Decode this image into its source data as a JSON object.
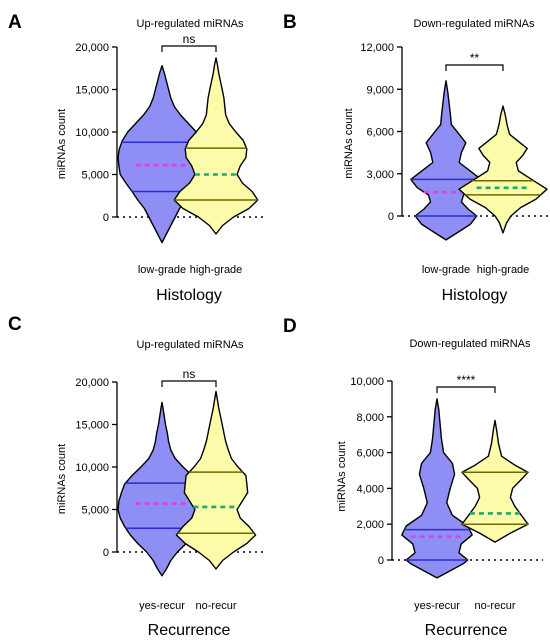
{
  "colors": {
    "group1_fill": "#8f8ef5",
    "group1_line": "#2a2ad8",
    "group2_fill": "#fbfba9",
    "group2_line": "#6b6b00",
    "mean1": "#e040e0",
    "mean2": "#1fa870",
    "outline": "#000000"
  },
  "chart_data": [
    {
      "panel": "A",
      "type": "violin",
      "title": "Up-regulated miRNAs",
      "ylabel": "miRNAs count",
      "xlabel": "Histology",
      "ylim": [
        0,
        20000
      ],
      "yticks": [
        0,
        5000,
        10000,
        15000,
        20000
      ],
      "ytick_labels": [
        "0",
        "5,000",
        "10,000",
        "15,000",
        "20,000"
      ],
      "categories": [
        "low-grade",
        "high-grade"
      ],
      "significance": "ns",
      "violins": [
        {
          "name": "low-grade",
          "ymin": -3000,
          "ymax": 17800,
          "q1": 3000,
          "median": 6000,
          "q3": 8800,
          "mean": 6100,
          "density": [
            [
              -3000,
              0
            ],
            [
              -2000,
              0.1
            ],
            [
              -1000,
              0.2
            ],
            [
              0,
              0.3
            ],
            [
              1000,
              0.4
            ],
            [
              2000,
              0.55
            ],
            [
              3000,
              0.68
            ],
            [
              4000,
              0.82
            ],
            [
              5000,
              0.95
            ],
            [
              6000,
              0.98
            ],
            [
              7000,
              1.0
            ],
            [
              8000,
              0.97
            ],
            [
              9000,
              0.9
            ],
            [
              10000,
              0.78
            ],
            [
              11000,
              0.6
            ],
            [
              12000,
              0.42
            ],
            [
              13000,
              0.28
            ],
            [
              14000,
              0.2
            ],
            [
              15000,
              0.15
            ],
            [
              16000,
              0.1
            ],
            [
              17000,
              0.05
            ],
            [
              17800,
              0
            ]
          ]
        },
        {
          "name": "high-grade",
          "ymin": -2000,
          "ymax": 18700,
          "q1": 2000,
          "median": 4300,
          "q3": 8100,
          "mean": 5000,
          "density": [
            [
              -2000,
              0
            ],
            [
              -1000,
              0.15
            ],
            [
              0,
              0.4
            ],
            [
              1000,
              0.75
            ],
            [
              2000,
              0.95
            ],
            [
              3000,
              0.82
            ],
            [
              4000,
              0.6
            ],
            [
              5000,
              0.48
            ],
            [
              6000,
              0.55
            ],
            [
              7000,
              0.68
            ],
            [
              8000,
              0.7
            ],
            [
              9000,
              0.62
            ],
            [
              10000,
              0.45
            ],
            [
              11000,
              0.3
            ],
            [
              12000,
              0.22
            ],
            [
              13000,
              0.2
            ],
            [
              14000,
              0.18
            ],
            [
              15000,
              0.14
            ],
            [
              16000,
              0.1
            ],
            [
              17000,
              0.06
            ],
            [
              18000,
              0.03
            ],
            [
              18700,
              0
            ]
          ]
        }
      ]
    },
    {
      "panel": "B",
      "type": "violin",
      "title": "Down-regulated miRNAs",
      "ylabel": "miRNAs count",
      "xlabel": "Histology",
      "ylim": [
        0,
        12000
      ],
      "yticks": [
        0,
        3000,
        6000,
        9000,
        12000
      ],
      "ytick_labels": [
        "0",
        "3,000",
        "6,000",
        "9,000",
        "12,000"
      ],
      "categories": [
        "low-grade",
        "high-grade"
      ],
      "significance": "**",
      "violins": [
        {
          "name": "low-grade",
          "ymin": -1700,
          "ymax": 9600,
          "q1": 0,
          "median": 1300,
          "q3": 2600,
          "mean": 1700,
          "density": [
            [
              -1700,
              0
            ],
            [
              -1200,
              0.25
            ],
            [
              -600,
              0.55
            ],
            [
              0,
              0.7
            ],
            [
              500,
              0.5
            ],
            [
              1000,
              0.35
            ],
            [
              1500,
              0.4
            ],
            [
              2000,
              0.65
            ],
            [
              2600,
              0.8
            ],
            [
              3200,
              0.55
            ],
            [
              3800,
              0.3
            ],
            [
              4500,
              0.35
            ],
            [
              5200,
              0.45
            ],
            [
              5800,
              0.3
            ],
            [
              6500,
              0.12
            ],
            [
              7200,
              0.1
            ],
            [
              8000,
              0.07
            ],
            [
              8800,
              0.04
            ],
            [
              9600,
              0
            ]
          ]
        },
        {
          "name": "high-grade",
          "ymin": -1200,
          "ymax": 7800,
          "q1": 1500,
          "median": 1900,
          "q3": 2500,
          "mean": 2000,
          "density": [
            [
              -1200,
              0
            ],
            [
              -500,
              0.08
            ],
            [
              0,
              0.18
            ],
            [
              600,
              0.4
            ],
            [
              1200,
              0.75
            ],
            [
              1900,
              1.0
            ],
            [
              2500,
              0.7
            ],
            [
              3200,
              0.35
            ],
            [
              3800,
              0.3
            ],
            [
              4300,
              0.45
            ],
            [
              4800,
              0.55
            ],
            [
              5300,
              0.35
            ],
            [
              5800,
              0.15
            ],
            [
              6500,
              0.09
            ],
            [
              7200,
              0.05
            ],
            [
              7800,
              0
            ]
          ]
        }
      ]
    },
    {
      "panel": "C",
      "type": "violin",
      "title": "Up-regulated miRNAs",
      "ylabel": "miRNAs count",
      "xlabel": "Recurrence",
      "ylim": [
        0,
        20000
      ],
      "yticks": [
        0,
        5000,
        10000,
        15000,
        20000
      ],
      "ytick_labels": [
        "0",
        "5,000",
        "10,000",
        "15,000",
        "20,000"
      ],
      "categories": [
        "yes-recur",
        "no-recur"
      ],
      "significance": "ns",
      "violins": [
        {
          "name": "yes-recur",
          "ymin": -2800,
          "ymax": 17600,
          "q1": 2800,
          "median": 5000,
          "q3": 8100,
          "mean": 5700,
          "density": [
            [
              -2800,
              0
            ],
            [
              -2000,
              0.1
            ],
            [
              -1000,
              0.2
            ],
            [
              0,
              0.35
            ],
            [
              1000,
              0.55
            ],
            [
              2000,
              0.72
            ],
            [
              3000,
              0.85
            ],
            [
              4000,
              0.95
            ],
            [
              5000,
              1.0
            ],
            [
              6000,
              0.98
            ],
            [
              7000,
              0.92
            ],
            [
              8000,
              0.85
            ],
            [
              9000,
              0.68
            ],
            [
              10000,
              0.48
            ],
            [
              11000,
              0.3
            ],
            [
              12000,
              0.2
            ],
            [
              13000,
              0.15
            ],
            [
              14000,
              0.12
            ],
            [
              15000,
              0.08
            ],
            [
              16000,
              0.05
            ],
            [
              17000,
              0.02
            ],
            [
              17600,
              0
            ]
          ]
        },
        {
          "name": "no-recur",
          "ymin": -2000,
          "ymax": 18900,
          "q1": 2200,
          "median": 4000,
          "q3": 9400,
          "mean": 5300,
          "density": [
            [
              -2000,
              0
            ],
            [
              -1000,
              0.15
            ],
            [
              0,
              0.4
            ],
            [
              1000,
              0.7
            ],
            [
              2000,
              0.9
            ],
            [
              3000,
              0.75
            ],
            [
              4000,
              0.55
            ],
            [
              5000,
              0.48
            ],
            [
              6000,
              0.6
            ],
            [
              7000,
              0.72
            ],
            [
              8000,
              0.7
            ],
            [
              9000,
              0.68
            ],
            [
              10000,
              0.5
            ],
            [
              11000,
              0.35
            ],
            [
              12000,
              0.28
            ],
            [
              13000,
              0.22
            ],
            [
              14000,
              0.18
            ],
            [
              15000,
              0.14
            ],
            [
              16000,
              0.1
            ],
            [
              17000,
              0.06
            ],
            [
              18000,
              0.03
            ],
            [
              18900,
              0
            ]
          ]
        }
      ]
    },
    {
      "panel": "D",
      "type": "violin",
      "title": "Down-regulated miRNAs",
      "ylabel": "miRNAs count",
      "xlabel": "Recurrence",
      "ylim": [
        0,
        10000
      ],
      "yticks": [
        0,
        2000,
        4000,
        6000,
        8000,
        10000
      ],
      "ytick_labels": [
        "0",
        "2,000",
        "4,000",
        "6,000",
        "8,000",
        "10,000"
      ],
      "categories": [
        "yes-recur",
        "no-recur"
      ],
      "significance": "****",
      "violins": [
        {
          "name": "yes-recur",
          "ymin": -1000,
          "ymax": 9000,
          "q1": 0,
          "median": 1000,
          "q3": 1700,
          "mean": 1300,
          "density": [
            [
              -1000,
              0
            ],
            [
              -600,
              0.3
            ],
            [
              -200,
              0.6
            ],
            [
              0,
              0.7
            ],
            [
              400,
              0.5
            ],
            [
              900,
              0.55
            ],
            [
              1400,
              0.8
            ],
            [
              1900,
              0.7
            ],
            [
              2500,
              0.35
            ],
            [
              3200,
              0.22
            ],
            [
              4000,
              0.3
            ],
            [
              4800,
              0.4
            ],
            [
              5400,
              0.35
            ],
            [
              6000,
              0.15
            ],
            [
              6800,
              0.1
            ],
            [
              7600,
              0.07
            ],
            [
              8400,
              0.04
            ],
            [
              9000,
              0
            ]
          ]
        },
        {
          "name": "no-recur",
          "ymin": 1000,
          "ymax": 7800,
          "q1": 2000,
          "median": 2500,
          "q3": 4900,
          "mean": 2600,
          "density": [
            [
              1000,
              0
            ],
            [
              1500,
              0.35
            ],
            [
              2000,
              0.75
            ],
            [
              2500,
              0.6
            ],
            [
              3000,
              0.45
            ],
            [
              3500,
              0.35
            ],
            [
              4000,
              0.4
            ],
            [
              4500,
              0.6
            ],
            [
              4900,
              0.75
            ],
            [
              5300,
              0.45
            ],
            [
              5800,
              0.15
            ],
            [
              6500,
              0.08
            ],
            [
              7200,
              0.04
            ],
            [
              7800,
              0
            ]
          ]
        }
      ]
    }
  ]
}
